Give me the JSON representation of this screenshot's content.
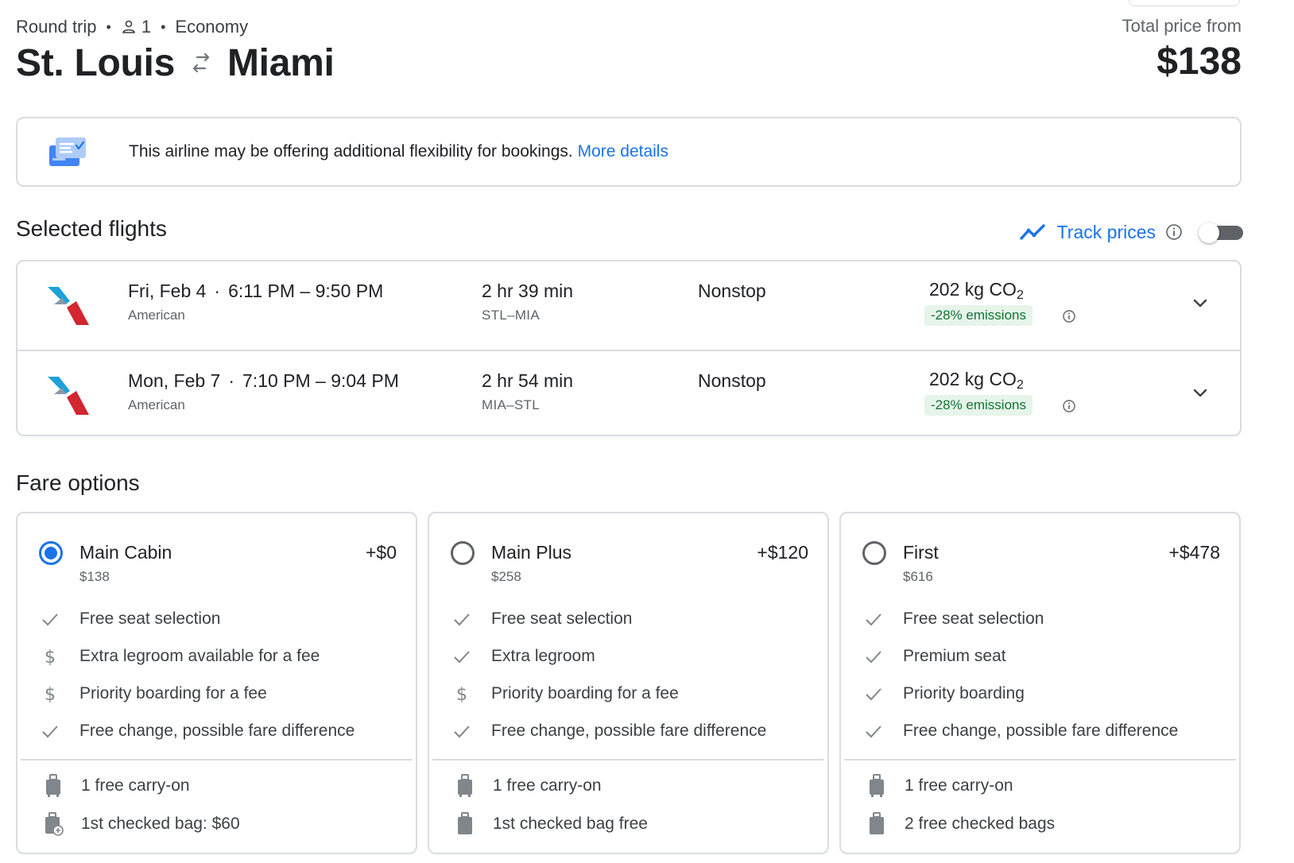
{
  "header": {
    "trip_type": "Round trip",
    "passengers": "1",
    "cabin": "Economy",
    "origin": "St. Louis",
    "destination": "Miami",
    "price_label": "Total price from",
    "price": "$138"
  },
  "banner": {
    "text": "This airline may be offering additional flexibility for bookings.",
    "link": "More details"
  },
  "selected": {
    "title": "Selected flights",
    "track_label": "Track prices",
    "track_enabled": false,
    "flights": [
      {
        "date": "Fri, Feb 4",
        "times": "6:11 PM – 9:50 PM",
        "airline": "American",
        "duration": "2 hr 39 min",
        "airports": "STL–MIA",
        "stops": "Nonstop",
        "co2": "202 kg CO",
        "co2_sub": "2",
        "emissions": "-28% emissions"
      },
      {
        "date": "Mon, Feb 7",
        "times": "7:10 PM – 9:04 PM",
        "airline": "American",
        "duration": "2 hr 54 min",
        "airports": "MIA–STL",
        "stops": "Nonstop",
        "co2": "202 kg CO",
        "co2_sub": "2",
        "emissions": "-28% emissions"
      }
    ]
  },
  "fares": {
    "title": "Fare options",
    "options": [
      {
        "name": "Main Cabin",
        "price": "$138",
        "add": "+$0",
        "selected": true,
        "features": [
          {
            "icon": "check-icon",
            "text": "Free seat selection"
          },
          {
            "icon": "dollar-icon",
            "text": "Extra legroom available for a fee"
          },
          {
            "icon": "dollar-icon",
            "text": "Priority boarding for a fee"
          },
          {
            "icon": "check-icon",
            "text": "Free change, possible fare difference"
          }
        ],
        "bags": [
          {
            "icon": "carry-on-icon",
            "text": "1 free carry-on"
          },
          {
            "icon": "checked-bag-fee-icon",
            "text": "1st checked bag: $60"
          }
        ]
      },
      {
        "name": "Main Plus",
        "price": "$258",
        "add": "+$120",
        "selected": false,
        "features": [
          {
            "icon": "check-icon",
            "text": "Free seat selection"
          },
          {
            "icon": "check-icon",
            "text": "Extra legroom"
          },
          {
            "icon": "dollar-icon",
            "text": "Priority boarding for a fee"
          },
          {
            "icon": "check-icon",
            "text": "Free change, possible fare difference"
          }
        ],
        "bags": [
          {
            "icon": "carry-on-icon",
            "text": "1 free carry-on"
          },
          {
            "icon": "checked-bag-icon",
            "text": "1st checked bag free"
          }
        ]
      },
      {
        "name": "First",
        "price": "$616",
        "add": "+$478",
        "selected": false,
        "features": [
          {
            "icon": "check-icon",
            "text": "Free seat selection"
          },
          {
            "icon": "check-icon",
            "text": "Premium seat"
          },
          {
            "icon": "check-icon",
            "text": "Priority boarding"
          },
          {
            "icon": "check-icon",
            "text": "Free change, possible fare difference"
          }
        ],
        "bags": [
          {
            "icon": "carry-on-icon",
            "text": "1 free carry-on"
          },
          {
            "icon": "checked-bag-icon",
            "text": "2 free checked bags"
          }
        ]
      }
    ]
  },
  "colors": {
    "accent": "#1a73e8",
    "emissions_bg": "#e6f4ea",
    "emissions_text": "#137333",
    "border": "#dadce0"
  }
}
